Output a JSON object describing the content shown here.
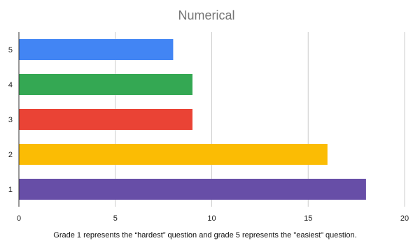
{
  "chart_data": {
    "type": "bar",
    "orientation": "horizontal",
    "title": "Numerical",
    "caption": "Grade 1 represents the “hardest” question and grade 5 represents the \"easiest\" question.",
    "categories": [
      "5",
      "4",
      "3",
      "2",
      "1"
    ],
    "values": [
      8,
      9,
      9,
      16,
      18
    ],
    "bar_colors": [
      "#4285f4",
      "#34a853",
      "#ea4335",
      "#fbbc04",
      "#674ea7"
    ],
    "xlim": [
      0,
      20
    ],
    "x_ticks": [
      0,
      5,
      10,
      15,
      20
    ],
    "grid": true,
    "legend": "none"
  }
}
